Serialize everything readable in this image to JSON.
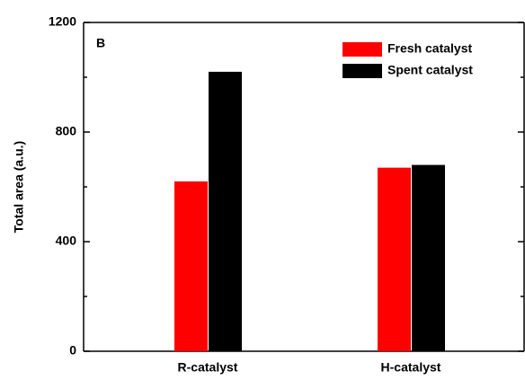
{
  "chart_data": {
    "type": "bar",
    "panel_label": "B",
    "y_label": "Total area (a.u.)",
    "categories": [
      "R-catalyst",
      "H-catalyst"
    ],
    "series": [
      {
        "name": "Fresh catalyst",
        "color": "#ff0000",
        "values": [
          620,
          670
        ]
      },
      {
        "name": "Spent catalyst",
        "color": "#000000",
        "values": [
          1020,
          680
        ]
      }
    ],
    "ylim": [
      0,
      1200
    ],
    "yticks": [
      0,
      400,
      800,
      1200
    ],
    "yticks_minor": [
      200,
      600,
      1000
    ],
    "legend": "upper-right"
  }
}
